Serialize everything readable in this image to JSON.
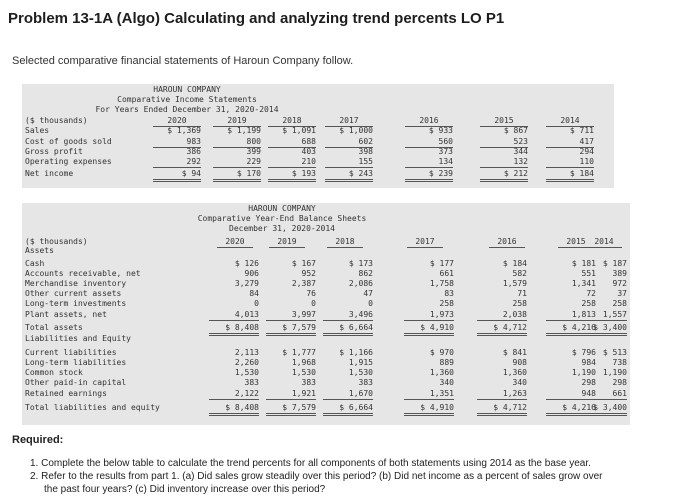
{
  "title": "Problem 13-1A (Algo) Calculating and analyzing trend percents LO P1",
  "subtitle": "Selected comparative financial statements of Haroun Company follow.",
  "income": {
    "company": "HAROUN COMPANY",
    "name": "Comparative Income Statements",
    "period": "For Years Ended December 31, 2020-2014",
    "unit": "($ thousands)",
    "years": [
      "2020",
      "2019",
      "2018",
      "2017",
      "2016",
      "2015",
      "2014"
    ],
    "rows": [
      {
        "label": "Sales",
        "values": [
          "$ 1,369",
          "$ 1,199",
          "$ 1,091",
          "$ 1,000",
          "$ 933",
          "$ 867",
          "$ 711"
        ]
      },
      {
        "label": "Cost of goods sold",
        "values": [
          "983",
          "800",
          "688",
          "602",
          "560",
          "523",
          "417"
        ]
      },
      {
        "label": "Gross profit",
        "values": [
          "386",
          "399",
          "403",
          "398",
          "373",
          "344",
          "294"
        ]
      },
      {
        "label": "Operating expenses",
        "values": [
          "292",
          "229",
          "210",
          "155",
          "134",
          "132",
          "110"
        ]
      },
      {
        "label": "Net income",
        "values": [
          "$ 94",
          "$ 170",
          "$ 193",
          "$ 243",
          "$ 239",
          "$ 212",
          "$ 184"
        ]
      }
    ]
  },
  "balance": {
    "company": "HAROUN COMPANY",
    "name": "Comparative Year-End Balance Sheets",
    "period": "December 31, 2020-2014",
    "unit": "($ thousands)",
    "years": [
      "2020",
      "2019",
      "2018",
      "2017",
      "2016",
      "2015",
      "2014"
    ],
    "assets_heading": "Assets",
    "assets": [
      {
        "label": "Cash",
        "values": [
          "$ 126",
          "$ 167",
          "$ 173",
          "$ 177",
          "$ 184",
          "$ 181",
          "$ 187"
        ]
      },
      {
        "label": "Accounts receivable, net",
        "values": [
          "906",
          "952",
          "862",
          "661",
          "582",
          "551",
          "389"
        ]
      },
      {
        "label": "Merchandise inventory",
        "values": [
          "3,279",
          "2,387",
          "2,086",
          "1,758",
          "1,579",
          "1,341",
          "972"
        ]
      },
      {
        "label": "Other current assets",
        "values": [
          "84",
          "76",
          "47",
          "83",
          "71",
          "72",
          "37"
        ]
      },
      {
        "label": "Long-term investments",
        "values": [
          "0",
          "0",
          "0",
          "258",
          "258",
          "258",
          "258"
        ]
      },
      {
        "label": "Plant assets, net",
        "values": [
          "4,013",
          "3,997",
          "3,496",
          "1,973",
          "2,038",
          "1,813",
          "1,557"
        ]
      }
    ],
    "total_assets": {
      "label": "Total assets",
      "values": [
        "$ 8,408",
        "$ 7,579",
        "$ 6,664",
        "$ 4,910",
        "$ 4,712",
        "$ 4,216",
        "$ 3,400"
      ]
    },
    "liab_heading": "Liabilities and Equity",
    "liabilities": [
      {
        "label": "Current liabilities",
        "values": [
          "2,113",
          "$ 1,777",
          "$ 1,166",
          "$ 970",
          "$ 841",
          "$ 796",
          "$ 513"
        ]
      },
      {
        "label": "Long-term liabilities",
        "values": [
          "2,260",
          "1,968",
          "1,915",
          "889",
          "908",
          "984",
          "738"
        ]
      },
      {
        "label": "Common stock",
        "values": [
          "1,530",
          "1,530",
          "1,530",
          "1,360",
          "1,360",
          "1,190",
          "1,190"
        ]
      },
      {
        "label": "Other paid-in capital",
        "values": [
          "383",
          "383",
          "383",
          "340",
          "340",
          "298",
          "298"
        ]
      },
      {
        "label": "Retained earnings",
        "values": [
          "2,122",
          "1,921",
          "1,670",
          "1,351",
          "1,263",
          "948",
          "661"
        ]
      }
    ],
    "total_liab": {
      "label": "Total liabilities and equity",
      "values": [
        "$ 8,408",
        "$ 7,579",
        "$ 6,664",
        "$ 4,910",
        "$ 4,712",
        "$ 4,216",
        "$ 3,400"
      ]
    }
  },
  "required": {
    "heading": "Required:",
    "items": [
      "1. Complete the below table to calculate the trend percents for all components of both statements using 2014 as the base year.",
      "2. Refer to the results from part 1. (a) Did sales grow steadily over this period? (b) Did net income as a percent of sales grow over",
      "the past four years? (c) Did inventory increase over this period?"
    ]
  }
}
